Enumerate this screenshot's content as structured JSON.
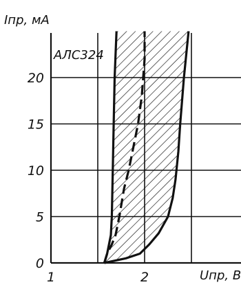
{
  "chart_data": {
    "type": "line",
    "title": "",
    "part_label": "АЛС324",
    "xlabel": "Uпр, В",
    "ylabel": "Iпр, мА",
    "xlim": [
      1,
      2.5
    ],
    "ylim": [
      0,
      25
    ],
    "x_ticks": [
      1,
      2
    ],
    "y_ticks": [
      0,
      5,
      10,
      15,
      20
    ],
    "grid": true,
    "spread_band": {
      "left_boundary": {
        "x": [
          1.57,
          1.6,
          1.62,
          1.64,
          1.65,
          1.66,
          1.67,
          1.68,
          1.7
        ],
        "y": [
          0,
          1,
          2,
          3,
          5,
          10,
          15,
          20,
          25
        ]
      },
      "right_boundary": {
        "x": [
          1.57,
          1.8,
          1.95,
          2.05,
          2.15,
          2.25,
          2.3,
          2.33,
          2.36,
          2.38,
          2.42,
          2.47
        ],
        "y": [
          0,
          0.5,
          1,
          2,
          3.2,
          5,
          7,
          9,
          12,
          15,
          20,
          25
        ]
      }
    },
    "series": [
      {
        "x": [
          1.57,
          1.6,
          1.65,
          1.69,
          1.73,
          1.78,
          1.83,
          1.88,
          1.93,
          1.97,
          2.0,
          2.0
        ],
        "y": [
          0,
          1,
          2,
          3,
          5,
          8,
          10,
          12.5,
          15,
          18,
          22,
          25
        ],
        "style": "dashed"
      }
    ]
  }
}
